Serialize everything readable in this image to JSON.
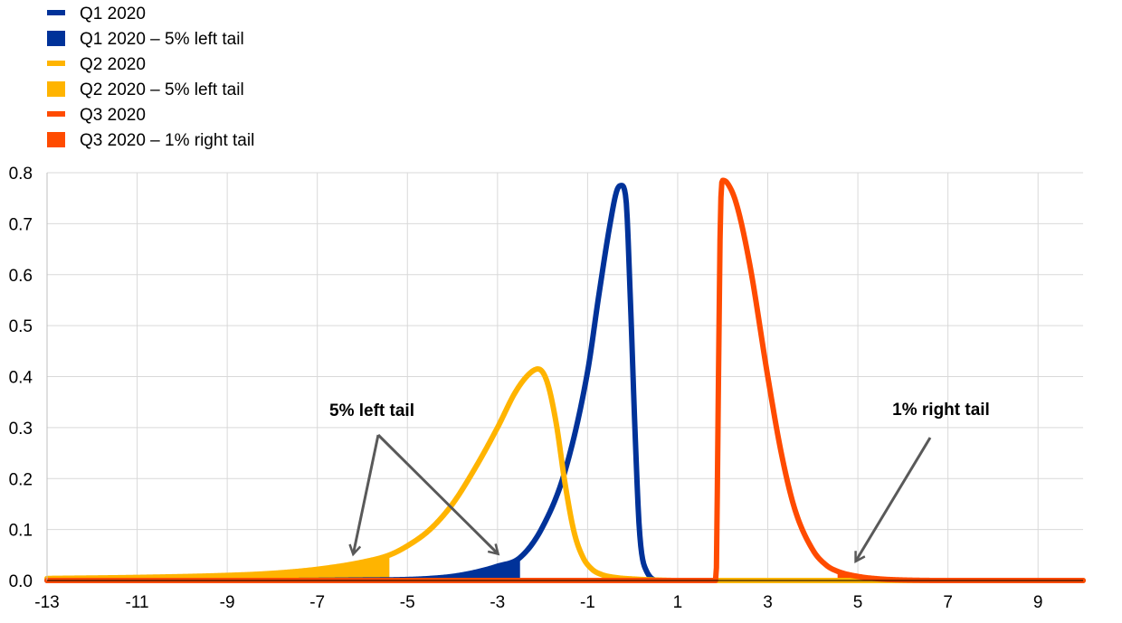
{
  "chart_data": {
    "type": "line",
    "title": "",
    "xlabel": "",
    "ylabel": "",
    "xlim": [
      -13,
      10
    ],
    "ylim": [
      0,
      0.8
    ],
    "grid": true,
    "legend_position": "top-left",
    "x_ticks": [
      "-13",
      "-11",
      "-9",
      "-7",
      "-5",
      "-3",
      "-1",
      "1",
      "3",
      "5",
      "7",
      "9"
    ],
    "y_ticks": [
      "0.0",
      "0.1",
      "0.2",
      "0.3",
      "0.4",
      "0.5",
      "0.6",
      "0.7",
      "0.8"
    ],
    "legend": [
      {
        "label": "Q1 2020",
        "kind": "line",
        "color": "#003299"
      },
      {
        "label": "Q1 2020 – 5% left tail",
        "kind": "area",
        "color": "#003299"
      },
      {
        "label": "Q2 2020",
        "kind": "line",
        "color": "#FFB400"
      },
      {
        "label": "Q2 2020 – 5% left tail",
        "kind": "area",
        "color": "#FFB400"
      },
      {
        "label": "Q3 2020",
        "kind": "line",
        "color": "#FF4B00"
      },
      {
        "label": "Q3 2020 – 1% right tail",
        "kind": "area",
        "color": "#FF4B00"
      }
    ],
    "series": [
      {
        "name": "Q1 2020",
        "color": "#003299",
        "tail": {
          "from": -13,
          "to": -2.5
        },
        "x": [
          -13,
          -8,
          -6,
          -5,
          -4.5,
          -4,
          -3.5,
          -3,
          -2.5,
          -2,
          -1.5,
          -1,
          -0.75,
          -0.5,
          -0.35,
          -0.25,
          -0.15,
          -0.05,
          0.05,
          0.15,
          0.3,
          0.6,
          10
        ],
        "y": [
          0,
          0,
          0.001,
          0.002,
          0.004,
          0.008,
          0.016,
          0.028,
          0.045,
          0.105,
          0.215,
          0.41,
          0.56,
          0.7,
          0.765,
          0.775,
          0.75,
          0.55,
          0.3,
          0.1,
          0.02,
          0,
          0
        ]
      },
      {
        "name": "Q2 2020",
        "color": "#FFB400",
        "tail": {
          "from": -13,
          "to": -5.4
        },
        "x": [
          -13,
          -11,
          -9,
          -8,
          -7,
          -6,
          -5.4,
          -5,
          -4.5,
          -4,
          -3.5,
          -3,
          -2.6,
          -2.3,
          -2.1,
          -1.9,
          -1.7,
          -1.5,
          -1.3,
          -1.1,
          -0.9,
          -0.7,
          -0.4,
          0,
          0.5,
          1,
          10
        ],
        "y": [
          0.004,
          0.006,
          0.01,
          0.014,
          0.022,
          0.036,
          0.05,
          0.068,
          0.1,
          0.15,
          0.22,
          0.3,
          0.37,
          0.405,
          0.415,
          0.39,
          0.31,
          0.19,
          0.095,
          0.045,
          0.022,
          0.012,
          0.006,
          0.003,
          0.001,
          0,
          0
        ]
      },
      {
        "name": "Q3 2020",
        "color": "#FF4B00",
        "tail": {
          "from": 4.55,
          "to": 10
        },
        "x": [
          -13,
          1.85,
          1.9,
          1.95,
          2.0,
          2.1,
          2.3,
          2.6,
          3.0,
          3.3,
          3.6,
          4.0,
          4.3,
          4.55,
          5.0,
          5.5,
          6.0,
          7.0,
          10
        ],
        "y": [
          0,
          0,
          0.35,
          0.72,
          0.785,
          0.78,
          0.74,
          0.62,
          0.4,
          0.25,
          0.14,
          0.06,
          0.03,
          0.018,
          0.008,
          0.003,
          0.001,
          0,
          0
        ]
      }
    ],
    "annotations": [
      {
        "text": "5% left tail",
        "tail_targets": [
          -6.2,
          -3
        ]
      },
      {
        "text": "1% right tail",
        "tail_targets": [
          5
        ]
      }
    ]
  }
}
